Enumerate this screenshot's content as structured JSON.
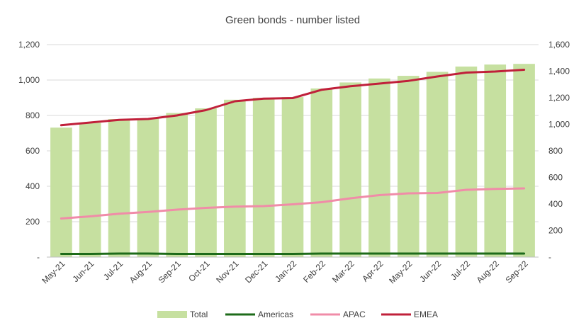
{
  "chart_data": {
    "type": "bar",
    "title": "Green bonds - number listed",
    "categories": [
      "May-21",
      "Jun-21",
      "Jul-21",
      "Aug-21",
      "Sep-21",
      "Oct-21",
      "Nov-21",
      "Dec-21",
      "Jan-22",
      "Feb-22",
      "Mar-22",
      "Apr-22",
      "May-22",
      "Jun-22",
      "Jul-22",
      "Aug-22",
      "Sep-22"
    ],
    "left_axis": {
      "ylim": [
        0,
        1200
      ],
      "ticks": [
        0,
        200,
        400,
        600,
        800,
        1000,
        1200
      ],
      "tick_labels": [
        "-",
        "200",
        "400",
        "600",
        "800",
        "1,000",
        "1,200"
      ]
    },
    "right_axis": {
      "ylim": [
        0,
        1600
      ],
      "ticks": [
        0,
        200,
        400,
        600,
        800,
        1000,
        1200,
        1400,
        1600
      ],
      "tick_labels": [
        "-",
        "200",
        "400",
        "600",
        "800",
        "1,000",
        "1,200",
        "1,400",
        "1,600"
      ]
    },
    "series": [
      {
        "name": "Total",
        "kind": "bar",
        "axis": "right",
        "color": "#c6e0a0",
        "values": [
          975,
          1010,
          1040,
          1045,
          1085,
          1120,
          1185,
          1200,
          1205,
          1270,
          1315,
          1345,
          1365,
          1395,
          1435,
          1450,
          1455
        ]
      },
      {
        "name": "Americas",
        "kind": "line",
        "axis": "left",
        "color": "#1e6b1a",
        "values": [
          18,
          18,
          20,
          20,
          18,
          18,
          18,
          18,
          18,
          20,
          20,
          20,
          20,
          20,
          20,
          20,
          20
        ]
      },
      {
        "name": "APAC",
        "kind": "line",
        "axis": "left",
        "color": "#f08ca8",
        "values": [
          218,
          230,
          245,
          255,
          268,
          278,
          285,
          288,
          298,
          310,
          332,
          350,
          360,
          362,
          380,
          385,
          388
        ]
      },
      {
        "name": "EMEA",
        "kind": "line",
        "axis": "left",
        "color": "#c0203a",
        "values": [
          745,
          760,
          775,
          780,
          800,
          830,
          880,
          895,
          898,
          945,
          965,
          980,
          995,
          1020,
          1042,
          1048,
          1058
        ]
      }
    ],
    "legend_position": "bottom",
    "grid": "horizontal"
  }
}
